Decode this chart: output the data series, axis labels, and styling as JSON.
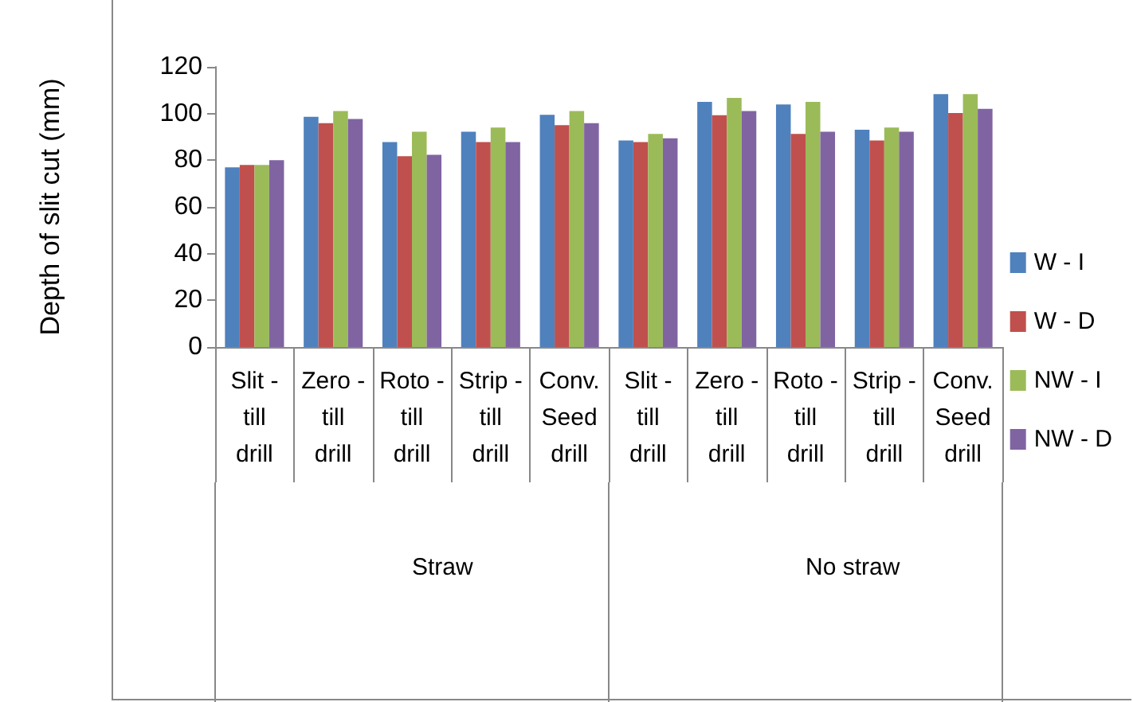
{
  "chart_data": {
    "type": "bar",
    "ylabel": "Depth of slit cut (mm)",
    "categories": [
      "Slit - till drill",
      "Zero - till drill",
      "Roto - till drill",
      "Strip - till drill",
      "Conv. Seed drill",
      "Slit - till drill",
      "Zero - till drill",
      "Roto - till drill",
      "Strip - till drill",
      "Conv. Seed drill"
    ],
    "series": [
      {
        "name": "W - I",
        "color": "#4f81bd",
        "values": [
          77,
          98.6,
          87.8,
          92.2,
          99.5,
          88.5,
          105,
          103.9,
          93.1,
          108.3
        ]
      },
      {
        "name": "W - D",
        "color": "#c0504d",
        "values": [
          78,
          95.9,
          81.7,
          87.8,
          95,
          87.8,
          99.3,
          91.3,
          88.5,
          100.2
        ]
      },
      {
        "name": "NW - I",
        "color": "#9bbb59",
        "values": [
          78,
          101.1,
          92.2,
          94,
          101.1,
          91.3,
          106.7,
          105,
          94,
          108.3
        ]
      },
      {
        "name": "NW - D",
        "color": "#8064a2",
        "values": [
          80,
          97.7,
          82.3,
          87.8,
          95.9,
          89.4,
          101.1,
          92.2,
          92.2,
          102
        ]
      }
    ],
    "ylim": [
      0,
      120
    ],
    "yticks": [
      0,
      20,
      40,
      60,
      80,
      100,
      120
    ],
    "annotations": [
      "Straw",
      "No straw"
    ],
    "grid": false,
    "legend": "right"
  }
}
